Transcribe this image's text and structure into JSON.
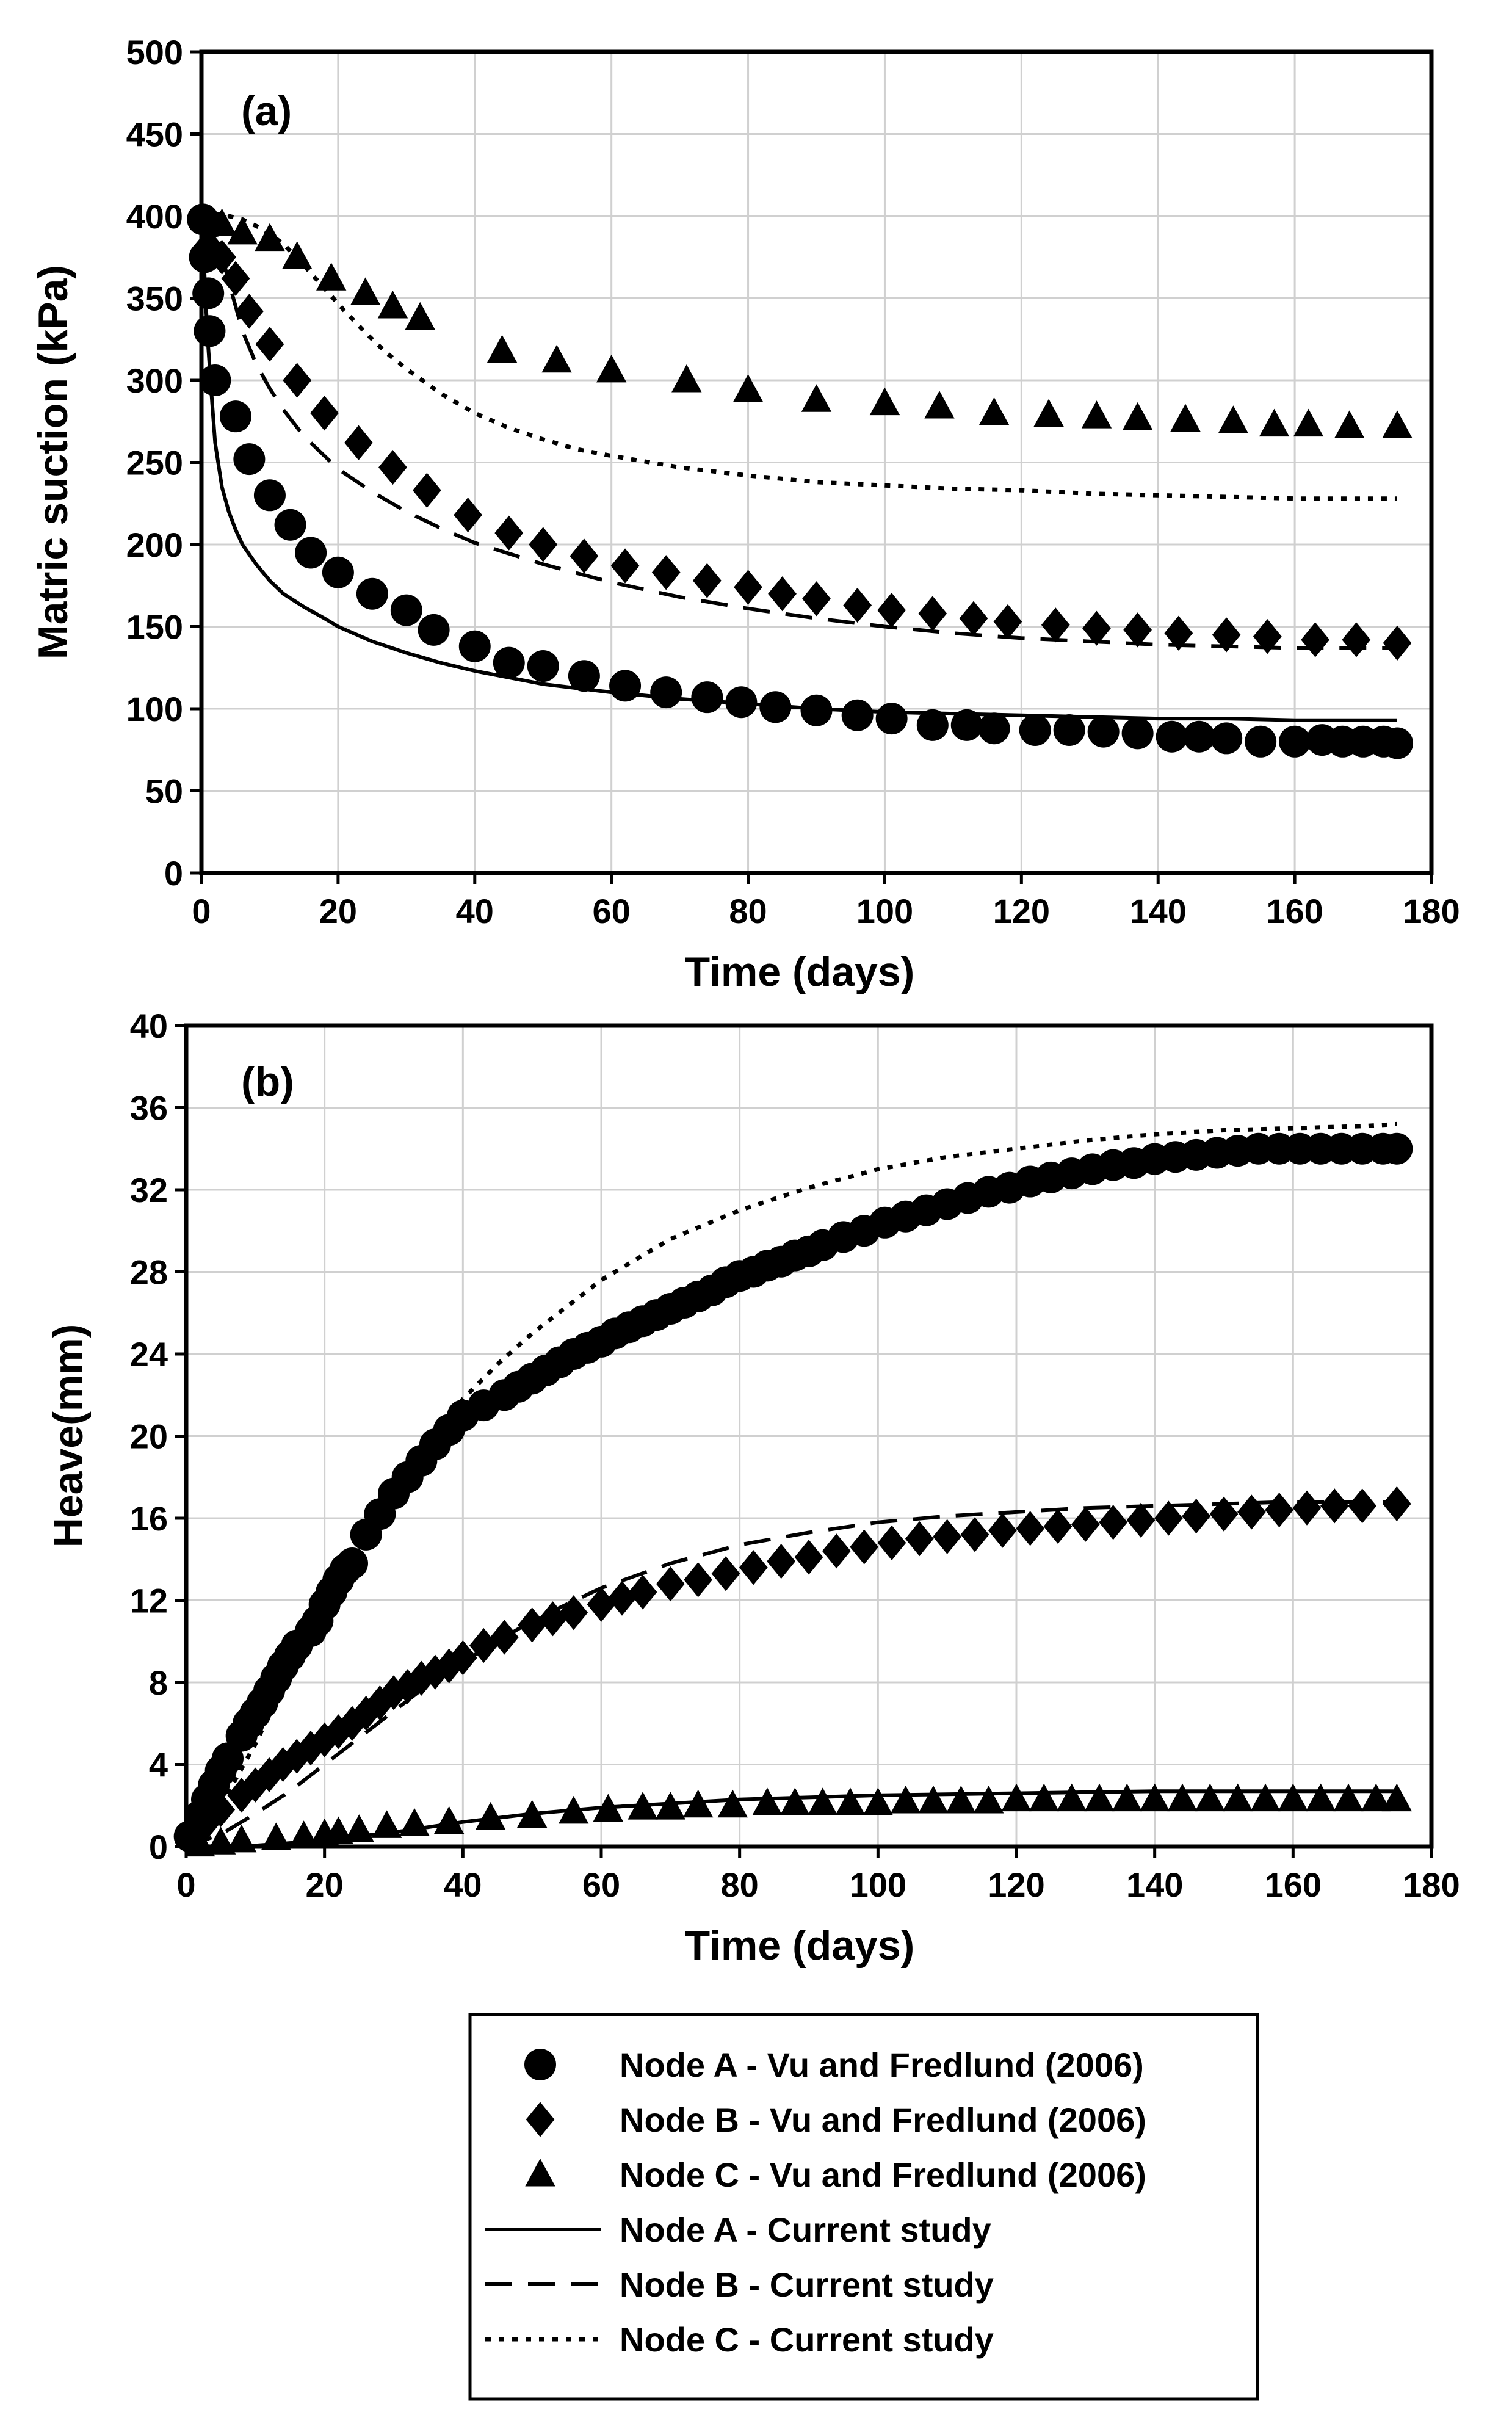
{
  "chart_data": [
    {
      "type": "scatter",
      "panel_label": "(a)",
      "xlabel": "Time (days)",
      "ylabel": "Matric suction (kPa)",
      "xlim": [
        0,
        180
      ],
      "ylim": [
        0,
        500
      ],
      "xticks": [
        0,
        20,
        40,
        60,
        80,
        100,
        120,
        140,
        160,
        180
      ],
      "yticks": [
        0,
        50,
        100,
        150,
        200,
        250,
        300,
        350,
        400,
        450,
        500
      ],
      "grid": true,
      "series": [
        {
          "name": "Node A - Vu and Fredlund (2006)",
          "kind": "marker",
          "marker": "circle",
          "x": [
            0.2,
            0.5,
            1,
            1.2,
            2,
            5,
            7,
            10,
            13,
            16,
            20,
            25,
            30,
            34,
            40,
            45,
            50,
            56,
            62,
            68,
            74,
            79,
            84,
            90,
            96,
            101,
            107,
            112,
            116,
            122,
            127,
            132,
            137,
            142,
            146,
            150,
            155,
            160,
            164,
            167,
            170,
            173,
            175
          ],
          "y": [
            398,
            375,
            353,
            330,
            300,
            278,
            252,
            230,
            212,
            195,
            183,
            170,
            160,
            148,
            138,
            128,
            126,
            120,
            114,
            110,
            107,
            104,
            101,
            99,
            96,
            94,
            90,
            90,
            88,
            87,
            87,
            86,
            85,
            83,
            83,
            82,
            80,
            80,
            81,
            80,
            80,
            80,
            79
          ]
        },
        {
          "name": "Node B - Vu and Fredlund (2006)",
          "kind": "marker",
          "marker": "diamond",
          "x": [
            1,
            3,
            5,
            7,
            10,
            14,
            18,
            23,
            28,
            33,
            39,
            45,
            50,
            56,
            62,
            68,
            74,
            80,
            85,
            90,
            96,
            101,
            107,
            113,
            118,
            125,
            131,
            137,
            143,
            150,
            156,
            163,
            169,
            175
          ],
          "y": [
            382,
            375,
            362,
            342,
            322,
            300,
            280,
            262,
            247,
            233,
            218,
            207,
            200,
            193,
            187,
            183,
            178,
            174,
            170,
            167,
            163,
            160,
            158,
            155,
            153,
            151,
            149,
            148,
            146,
            145,
            144,
            142,
            142,
            140
          ]
        },
        {
          "name": "Node C - Vu and Fredlund (2006)",
          "kind": "marker",
          "marker": "triangle",
          "x": [
            3,
            6,
            10,
            14,
            19,
            24,
            28,
            32,
            44,
            52,
            60,
            71,
            80,
            90,
            100,
            108,
            116,
            124,
            131,
            137,
            144,
            151,
            157,
            162,
            168,
            175
          ],
          "y": [
            395,
            390,
            386,
            375,
            362,
            353,
            345,
            338,
            318,
            312,
            306,
            300,
            294,
            288,
            286,
            284,
            280,
            279,
            278,
            277,
            276,
            275,
            273,
            273,
            272,
            272
          ]
        },
        {
          "name": "Node A - Current study",
          "kind": "line",
          "dash": "solid",
          "x": [
            0,
            0.3,
            0.6,
            1,
            1.5,
            2,
            3,
            4,
            5,
            6,
            8,
            10,
            12,
            15,
            18,
            20,
            25,
            30,
            35,
            40,
            50,
            60,
            70,
            80,
            90,
            100,
            110,
            120,
            130,
            140,
            150,
            160,
            170,
            175
          ],
          "y": [
            400,
            380,
            350,
            320,
            290,
            262,
            235,
            220,
            209,
            200,
            188,
            178,
            170,
            162,
            155,
            150,
            141,
            134,
            128,
            123,
            115,
            110,
            106,
            103,
            100,
            98,
            97,
            96,
            95,
            94,
            94,
            93,
            93,
            93
          ]
        },
        {
          "name": "Node B - Current study",
          "kind": "line",
          "dash": "dashed",
          "x": [
            0,
            2,
            4,
            6,
            8,
            10,
            12,
            15,
            20,
            25,
            30,
            35,
            40,
            50,
            60,
            70,
            80,
            90,
            100,
            110,
            120,
            130,
            140,
            150,
            160,
            170,
            175
          ],
          "y": [
            400,
            392,
            360,
            330,
            310,
            295,
            282,
            266,
            246,
            232,
            220,
            210,
            201,
            188,
            177,
            168,
            161,
            155,
            150,
            146,
            143,
            141,
            139,
            138,
            137,
            137,
            137
          ]
        },
        {
          "name": "Node C - Current study",
          "kind": "line",
          "dash": "dotted",
          "x": [
            0,
            3,
            6,
            9,
            12,
            15,
            18,
            21,
            24,
            27,
            30,
            35,
            40,
            45,
            50,
            55,
            60,
            70,
            80,
            90,
            100,
            110,
            120,
            130,
            140,
            150,
            160,
            170,
            175
          ],
          "y": [
            402,
            401,
            398,
            392,
            383,
            370,
            356,
            342,
            329,
            317,
            307,
            292,
            280,
            271,
            264,
            258,
            254,
            247,
            242,
            238,
            236,
            234,
            233,
            231,
            230,
            229,
            228,
            228,
            228
          ]
        }
      ]
    },
    {
      "type": "scatter",
      "panel_label": "(b)",
      "xlabel": "Time (days)",
      "ylabel": "Heave(mm)",
      "xlim": [
        0,
        180
      ],
      "ylim": [
        0,
        40
      ],
      "xticks": [
        0,
        20,
        40,
        60,
        80,
        100,
        120,
        140,
        160,
        180
      ],
      "yticks": [
        0,
        4,
        8,
        12,
        16,
        20,
        24,
        28,
        32,
        36,
        40
      ],
      "grid": true,
      "series": [
        {
          "name": "Node A - Vu and Fredlund (2006)",
          "kind": "marker",
          "marker": "circle",
          "x": [
            0.5,
            2,
            3,
            4,
            5,
            6,
            8,
            9,
            10,
            11,
            12,
            13,
            14,
            15,
            16,
            18,
            19,
            20,
            21,
            22,
            23,
            24,
            26,
            28,
            30,
            32,
            34,
            36,
            38,
            40,
            43,
            46,
            48,
            50,
            52,
            54,
            56,
            58,
            60,
            62,
            64,
            66,
            68,
            70,
            72,
            74,
            76,
            78,
            80,
            82,
            84,
            86,
            88,
            90,
            92,
            95,
            98,
            101,
            104,
            107,
            110,
            113,
            116,
            119,
            122,
            125,
            128,
            131,
            134,
            137,
            140,
            143,
            146,
            149,
            152,
            155,
            158,
            161,
            164,
            167,
            170,
            173,
            175
          ],
          "y": [
            0.5,
            1.5,
            2.3,
            3.0,
            3.7,
            4.3,
            5.4,
            6.0,
            6.5,
            7.0,
            7.6,
            8.2,
            8.8,
            9.3,
            9.8,
            10.5,
            11.0,
            11.8,
            12.4,
            13.0,
            13.5,
            13.8,
            15.2,
            16.2,
            17.2,
            18.0,
            18.8,
            19.6,
            20.3,
            21.0,
            21.5,
            22.0,
            22.4,
            22.8,
            23.2,
            23.6,
            24.0,
            24.3,
            24.6,
            25.0,
            25.3,
            25.6,
            25.9,
            26.2,
            26.5,
            26.8,
            27.1,
            27.5,
            27.8,
            28.0,
            28.3,
            28.5,
            28.8,
            29.0,
            29.3,
            29.7,
            30.0,
            30.4,
            30.7,
            31.0,
            31.3,
            31.6,
            31.9,
            32.1,
            32.4,
            32.6,
            32.8,
            33.0,
            33.2,
            33.3,
            33.5,
            33.6,
            33.7,
            33.8,
            33.9,
            34.0,
            34.0,
            34.0,
            34.0,
            34.0,
            34.0,
            34.0,
            34.0
          ]
        },
        {
          "name": "Node B - Vu and Fredlund (2006)",
          "kind": "marker",
          "marker": "diamond",
          "x": [
            1,
            3,
            5,
            8,
            10,
            12,
            14,
            16,
            18,
            20,
            22,
            24,
            26,
            28,
            30,
            32,
            34,
            36,
            38,
            40,
            43,
            46,
            50,
            53,
            56,
            60,
            63,
            66,
            70,
            74,
            78,
            82,
            86,
            90,
            94,
            98,
            102,
            106,
            110,
            114,
            118,
            122,
            126,
            130,
            134,
            138,
            142,
            146,
            150,
            154,
            158,
            162,
            166,
            170,
            175
          ],
          "y": [
            0.5,
            1.2,
            1.8,
            2.5,
            3.0,
            3.5,
            4.0,
            4.4,
            4.8,
            5.2,
            5.6,
            6.0,
            6.5,
            7.0,
            7.5,
            7.8,
            8.2,
            8.5,
            8.8,
            9.2,
            9.8,
            10.2,
            10.8,
            11.1,
            11.4,
            11.8,
            12.1,
            12.4,
            12.8,
            13.0,
            13.3,
            13.6,
            13.9,
            14.1,
            14.4,
            14.6,
            14.8,
            15.0,
            15.1,
            15.2,
            15.4,
            15.5,
            15.6,
            15.7,
            15.8,
            15.9,
            16.0,
            16.1,
            16.2,
            16.3,
            16.4,
            16.5,
            16.6,
            16.6,
            16.7
          ]
        },
        {
          "name": "Node C - Vu and Fredlund (2006)",
          "kind": "marker",
          "marker": "triangle",
          "x": [
            2,
            5,
            8,
            13,
            17,
            20,
            22,
            25,
            29,
            33,
            38,
            44,
            50,
            56,
            61,
            66,
            70,
            74,
            79,
            84,
            88,
            92,
            96,
            100,
            104,
            108,
            112,
            116,
            120,
            124,
            128,
            132,
            136,
            140,
            144,
            148,
            152,
            156,
            160,
            164,
            168,
            172,
            175
          ],
          "y": [
            0.1,
            0.2,
            0.3,
            0.4,
            0.5,
            0.6,
            0.7,
            0.8,
            1.0,
            1.1,
            1.2,
            1.4,
            1.5,
            1.7,
            1.8,
            1.9,
            1.9,
            2.0,
            2.0,
            2.1,
            2.1,
            2.1,
            2.1,
            2.1,
            2.2,
            2.2,
            2.2,
            2.2,
            2.3,
            2.3,
            2.3,
            2.3,
            2.3,
            2.3,
            2.3,
            2.3,
            2.3,
            2.3,
            2.3,
            2.3,
            2.3,
            2.3,
            2.3
          ]
        },
        {
          "name": "Node A - Current study",
          "kind": "line",
          "dash": "solid",
          "x": [
            0,
            10,
            20,
            30,
            40,
            50,
            60,
            80,
            100,
            120,
            140,
            160,
            175
          ],
          "y": [
            0,
            0.05,
            0.3,
            0.7,
            1.2,
            1.6,
            1.9,
            2.3,
            2.5,
            2.6,
            2.7,
            2.7,
            2.7
          ]
        },
        {
          "name": "Node B - Current study",
          "kind": "line",
          "dash": "dashed",
          "x": [
            0,
            5,
            10,
            15,
            20,
            25,
            30,
            35,
            40,
            50,
            60,
            70,
            80,
            90,
            100,
            110,
            120,
            130,
            140,
            150,
            160,
            170,
            175
          ],
          "y": [
            0,
            0.6,
            1.6,
            2.7,
            4.0,
            5.3,
            6.6,
            7.9,
            9.0,
            11.0,
            12.6,
            13.8,
            14.7,
            15.3,
            15.8,
            16.1,
            16.3,
            16.5,
            16.6,
            16.7,
            16.8,
            16.8,
            16.8
          ]
        },
        {
          "name": "Node C - Current study",
          "kind": "line",
          "dash": "dotted",
          "x": [
            0,
            5,
            10,
            15,
            20,
            25,
            30,
            35,
            40,
            45,
            50,
            60,
            70,
            80,
            90,
            100,
            110,
            120,
            130,
            140,
            150,
            160,
            170,
            175
          ],
          "y": [
            0,
            2.0,
            5.0,
            8.5,
            12.0,
            15.0,
            17.5,
            19.8,
            21.8,
            23.5,
            25.0,
            27.6,
            29.6,
            31.0,
            32.1,
            33.0,
            33.6,
            34.0,
            34.4,
            34.7,
            34.9,
            35.0,
            35.1,
            35.2
          ]
        }
      ]
    }
  ],
  "legend": {
    "placement": "bottom-center",
    "entries": [
      {
        "label": "Node A - Vu and Fredlund (2006)",
        "marker": "circle"
      },
      {
        "label": "Node B - Vu and Fredlund (2006)",
        "marker": "diamond"
      },
      {
        "label": "Node C - Vu and Fredlund (2006)",
        "marker": "triangle"
      },
      {
        "label": "Node A - Current study",
        "line": "solid"
      },
      {
        "label": "Node B - Current study",
        "line": "dashed"
      },
      {
        "label": "Node C - Current study",
        "line": "dotted"
      }
    ]
  }
}
